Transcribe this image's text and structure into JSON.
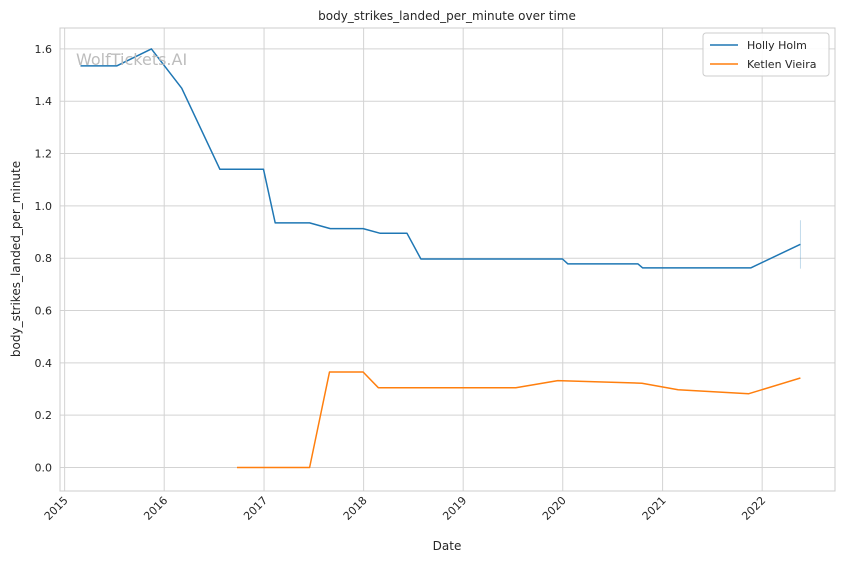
{
  "chart_data": {
    "type": "line",
    "title": "body_strikes_landed_per_minute over time",
    "xlabel": "Date",
    "ylabel": "body_strikes_landed_per_minute",
    "watermark": "WolfTickets.AI",
    "x_ticks": [
      "2015",
      "2016",
      "2017",
      "2018",
      "2019",
      "2020",
      "2021",
      "2022"
    ],
    "y_ticks": [
      "0.0",
      "0.2",
      "0.4",
      "0.6",
      "0.8",
      "1.0",
      "1.2",
      "1.4",
      "1.6"
    ],
    "ylim": [
      -0.09,
      1.68
    ],
    "xlim": [
      "2014-12-15",
      "2022-09-25"
    ],
    "grid": true,
    "legend_position": "top-right",
    "series": [
      {
        "name": "Holly Holm",
        "color": "#1f77b4",
        "points": [
          [
            "2015-02-28",
            1.535
          ],
          [
            "2015-07-11",
            1.535
          ],
          [
            "2015-11-15",
            1.6
          ],
          [
            "2016-03-05",
            1.45
          ],
          [
            "2016-07-23",
            1.14
          ],
          [
            "2016-12-30",
            1.14
          ],
          [
            "2017-02-11",
            0.935
          ],
          [
            "2017-06-17",
            0.935
          ],
          [
            "2017-09-01",
            0.913
          ],
          [
            "2017-12-30",
            0.913
          ],
          [
            "2018-03-03",
            0.895
          ],
          [
            "2018-06-09",
            0.895
          ],
          [
            "2018-07-30",
            0.797
          ],
          [
            "2019-12-14",
            0.797
          ],
          [
            "2019-12-31",
            0.797
          ],
          [
            "2020-01-20",
            0.778
          ],
          [
            "2020-10-03",
            0.778
          ],
          [
            "2020-10-20",
            0.763
          ],
          [
            "2021-11-20",
            0.763
          ],
          [
            "2022-05-21",
            0.853
          ]
        ],
        "error_bar": {
          "x": "2022-05-21",
          "low": 0.76,
          "high": 0.945
        }
      },
      {
        "name": "Ketlen Vieira",
        "color": "#ff7f0e",
        "points": [
          [
            "2016-09-24",
            0.0
          ],
          [
            "2017-06-17",
            0.0
          ],
          [
            "2017-08-29",
            0.365
          ],
          [
            "2017-12-30",
            0.365
          ],
          [
            "2018-02-24",
            0.305
          ],
          [
            "2019-07-13",
            0.305
          ],
          [
            "2019-12-14",
            0.332
          ],
          [
            "2020-10-17",
            0.322
          ],
          [
            "2021-02-27",
            0.297
          ],
          [
            "2021-11-13",
            0.282
          ],
          [
            "2022-05-21",
            0.342
          ]
        ]
      }
    ]
  }
}
